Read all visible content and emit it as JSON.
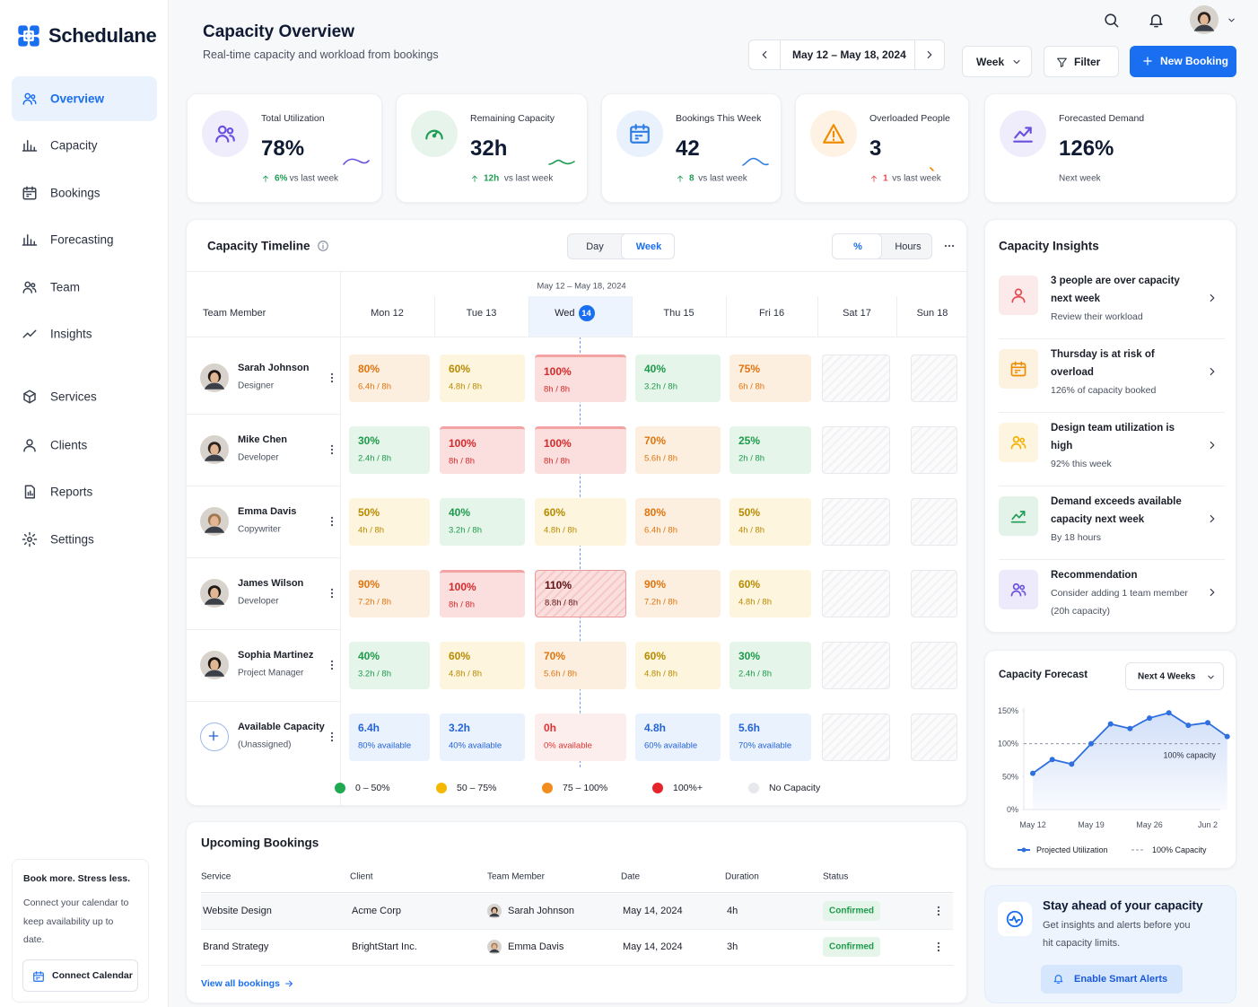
{
  "brand": "Schedulane",
  "nav": [
    "Overview",
    "Capacity",
    "Bookings",
    "Forecasting",
    "Team",
    "Insights",
    "Services",
    "Clients",
    "Reports",
    "Settings"
  ],
  "promo": {
    "title": "Book more. Stress less.",
    "text": "Connect your calendar to keep availability up to date.",
    "button": "Connect Calendar"
  },
  "header": {
    "title": "Capacity Overview",
    "subtitle": "Real-time capacity and workload from bookings",
    "date_range": "May 12 – May 18, 2024",
    "view": "Week",
    "filter": "Filter",
    "new_booking": "New Booking"
  },
  "kpis": [
    {
      "label": "Total Utilization",
      "value": "78%",
      "delta": "6%",
      "note": "vs last week",
      "color": "#6b4fe0",
      "delta_color": "#1f9d55"
    },
    {
      "label": "Remaining Capacity",
      "value": "32h",
      "delta": "12h",
      "note": "vs last week",
      "color": "#1f9d55",
      "delta_color": "#1f9d55"
    },
    {
      "label": "Bookings This Week",
      "value": "42",
      "delta": "8",
      "note": "vs last week",
      "color": "#2f7de1",
      "delta_color": "#1f9d55"
    },
    {
      "label": "Overloaded People",
      "value": "3",
      "delta": "1",
      "note": "vs last week",
      "color": "#f08c00",
      "delta_color": "#e5484d"
    },
    {
      "label": "Forecasted Demand",
      "value": "126%",
      "note": "Next week",
      "color": "#6b4fe0"
    }
  ],
  "timeline": {
    "title": "Capacity Timeline",
    "modes": [
      "Day",
      "Week"
    ],
    "units": [
      "%",
      "Hours"
    ],
    "range": "May 12 – May 18, 2024",
    "member_header": "Team Member",
    "days": [
      {
        "label": "Mon 12"
      },
      {
        "label": "Tue 13"
      },
      {
        "label": "Wed",
        "badge": "14"
      },
      {
        "label": "Thu 15"
      },
      {
        "label": "Fri 16"
      },
      {
        "label": "Sat 17"
      },
      {
        "label": "Sun 18"
      }
    ],
    "members": [
      {
        "name": "Sarah Johnson",
        "role": "Designer",
        "cells": [
          {
            "main": "80%",
            "sub": "6.4h / 8h",
            "level": "high"
          },
          {
            "main": "60%",
            "sub": "4.8h / 8h",
            "level": "medium"
          },
          {
            "main": "100%",
            "sub": "8h / 8h",
            "level": "over"
          },
          {
            "main": "40%",
            "sub": "3.2h / 8h",
            "level": "low"
          },
          {
            "main": "75%",
            "sub": "6h / 8h",
            "level": "high"
          }
        ]
      },
      {
        "name": "Mike Chen",
        "role": "Developer",
        "cells": [
          {
            "main": "30%",
            "sub": "2.4h / 8h",
            "level": "low"
          },
          {
            "main": "100%",
            "sub": "8h / 8h",
            "level": "over"
          },
          {
            "main": "100%",
            "sub": "8h / 8h",
            "level": "over"
          },
          {
            "main": "70%",
            "sub": "5.6h / 8h",
            "level": "high"
          },
          {
            "main": "25%",
            "sub": "2h / 8h",
            "level": "low"
          }
        ]
      },
      {
        "name": "Emma Davis",
        "role": "Copywriter",
        "cells": [
          {
            "main": "50%",
            "sub": "4h / 8h",
            "level": "medium"
          },
          {
            "main": "40%",
            "sub": "3.2h / 8h",
            "level": "low"
          },
          {
            "main": "60%",
            "sub": "4.8h / 8h",
            "level": "medium"
          },
          {
            "main": "80%",
            "sub": "6.4h / 8h",
            "level": "high"
          },
          {
            "main": "50%",
            "sub": "4h / 8h",
            "level": "medium"
          }
        ]
      },
      {
        "name": "James Wilson",
        "role": "Developer",
        "cells": [
          {
            "main": "90%",
            "sub": "7.2h / 8h",
            "level": "high"
          },
          {
            "main": "100%",
            "sub": "8h / 8h",
            "level": "over"
          },
          {
            "main": "110%",
            "sub": "8.8h / 8h",
            "level": "overbooked"
          },
          {
            "main": "90%",
            "sub": "7.2h / 8h",
            "level": "high"
          },
          {
            "main": "60%",
            "sub": "4.8h / 8h",
            "level": "medium"
          }
        ]
      },
      {
        "name": "Sophia Martinez",
        "role": "Project Manager",
        "cells": [
          {
            "main": "40%",
            "sub": "3.2h / 8h",
            "level": "low"
          },
          {
            "main": "60%",
            "sub": "4.8h / 8h",
            "level": "medium"
          },
          {
            "main": "70%",
            "sub": "5.6h / 8h",
            "level": "high"
          },
          {
            "main": "60%",
            "sub": "4.8h / 8h",
            "level": "medium"
          },
          {
            "main": "30%",
            "sub": "2.4h / 8h",
            "level": "low"
          }
        ]
      },
      {
        "name": "Available Capacity",
        "role": "(Unassigned)",
        "cells": [
          {
            "main": "6.4h",
            "sub": "80% available",
            "level": "available"
          },
          {
            "main": "3.2h",
            "sub": "40% available",
            "level": "available"
          },
          {
            "main": "0h",
            "sub": "0% available",
            "level": "empty"
          },
          {
            "main": "4.8h",
            "sub": "60% available",
            "level": "available"
          },
          {
            "main": "5.6h",
            "sub": "70% available",
            "level": "available"
          }
        ]
      }
    ],
    "legend": [
      {
        "label": "0 – 50%",
        "color": "#1faa52"
      },
      {
        "label": "50 – 75%",
        "color": "#f5b800"
      },
      {
        "label": "75 – 100%",
        "color": "#f28c1c"
      },
      {
        "label": "100%+",
        "color": "#e5252a"
      },
      {
        "label": "No Capacity",
        "color": "#e6e8ec"
      }
    ]
  },
  "insights": {
    "title": "Capacity Insights",
    "items": [
      {
        "title": "3 people are over capacity next week",
        "text": "Review their workload",
        "color": "#e5484d"
      },
      {
        "title": "Thursday is at risk of overload",
        "text": "126% of capacity booked",
        "color": "#f08c00"
      },
      {
        "title": "Design team utilization is high",
        "text": "92% this week",
        "color": "#f5b000"
      },
      {
        "title": "Demand exceeds available capacity next week",
        "text": "By 18 hours",
        "color": "#1f9d55"
      },
      {
        "title": "Recommendation",
        "text": "Consider adding 1 team member (20h capacity)",
        "color": "#6b4fe0"
      }
    ]
  },
  "forecast": {
    "type": "line",
    "title": "Capacity Forecast",
    "period": "Next 4 Weeks",
    "categories": [
      "May 12",
      null,
      null,
      "May 19",
      null,
      null,
      "May 26",
      null,
      null,
      "Jun 2",
      null
    ],
    "series": [
      {
        "name": "Projected Utilization",
        "color": "#2f6fe0",
        "values": [
          55,
          76,
          69,
          100,
          130,
          123,
          139,
          147,
          128,
          132,
          111
        ]
      }
    ],
    "reference": 100,
    "reference_name": "100% Capacity",
    "reference_label": "100% capacity",
    "ylim": [
      0,
      150
    ],
    "yticks": [
      {
        "value": 0,
        "label": "0%"
      },
      {
        "value": 50,
        "label": "50%"
      },
      {
        "value": 100,
        "label": "100%"
      },
      {
        "value": 150,
        "label": "150%"
      }
    ],
    "grid": false
  },
  "bookings": {
    "title": "Upcoming Bookings",
    "columns": [
      "Service",
      "Client",
      "Team Member",
      "Date",
      "Duration",
      "Status"
    ],
    "rows": [
      [
        "Website Design",
        "Acme Corp",
        "Sarah Johnson",
        "May 14, 2024",
        "4h",
        "Confirmed"
      ],
      [
        "Brand Strategy",
        "BrightStart Inc.",
        "Emma Davis",
        "May 14, 2024",
        "3h",
        "Confirmed"
      ]
    ],
    "link": "View all bookings"
  },
  "alerts": {
    "title": "Stay ahead of your capacity",
    "text": "Get insights and alerts before you hit capacity limits.",
    "button": "Enable Smart Alerts"
  }
}
